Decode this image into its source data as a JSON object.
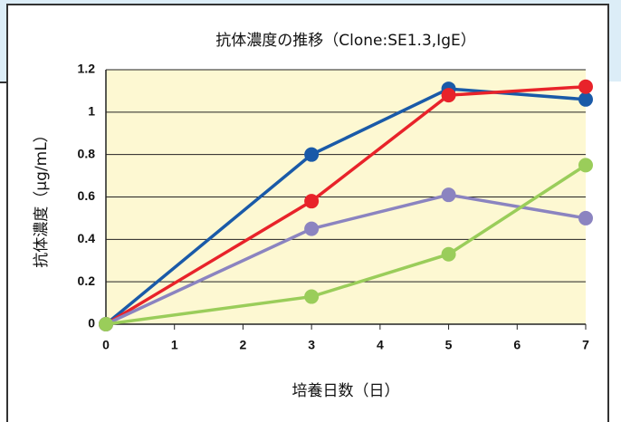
{
  "chart_data": {
    "type": "line",
    "title": "抗体濃度の推移（Clone:SE1.3,IgE）",
    "x_label": "培養日数（日）",
    "y_label": "抗体濃度（μg/mL）",
    "x": [
      0,
      3,
      5,
      7
    ],
    "series": [
      {
        "color": "#1a5aa8",
        "values": [
          0,
          0.8,
          1.11,
          1.06
        ]
      },
      {
        "color": "#e8232a",
        "values": [
          0,
          0.58,
          1.08,
          1.12
        ]
      },
      {
        "color": "#8b84c0",
        "values": [
          0,
          0.45,
          0.61,
          0.5
        ]
      },
      {
        "color": "#9acd5a",
        "values": [
          0,
          0.13,
          0.33,
          0.75
        ]
      }
    ],
    "xlim": [
      0,
      7
    ],
    "xticks": [
      0,
      1,
      2,
      3,
      4,
      5,
      6,
      7
    ],
    "ylim": [
      0,
      1.2
    ],
    "yticks": [
      0,
      0.2,
      0.4,
      0.6,
      0.8,
      1,
      1.2
    ],
    "grid": true
  }
}
